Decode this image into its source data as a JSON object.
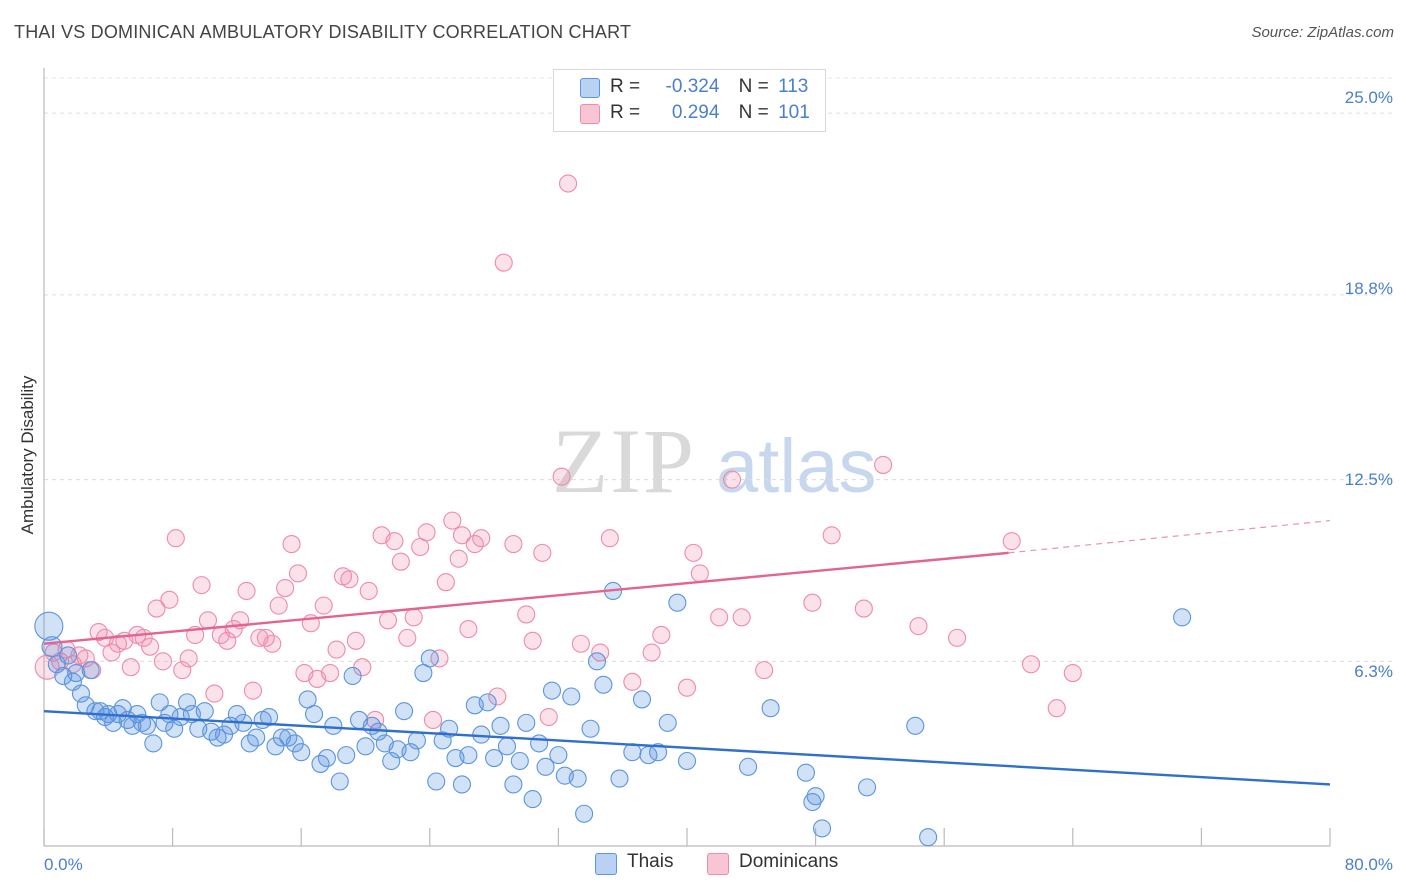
{
  "title": "THAI VS DOMINICAN AMBULATORY DISABILITY CORRELATION CHART",
  "source": "Source: ZipAtlas.com",
  "watermark": {
    "zip": "ZIP",
    "atlas": "atlas"
  },
  "colors": {
    "thais": "#5b95e0",
    "dominicans": "#f08aaa",
    "thais_line": "#2f6fcd",
    "dominicans_line": "#e2648f",
    "tick": "#4a7fd0"
  },
  "legend": {
    "thais": {
      "r_label": "R =",
      "r_value": "-0.324",
      "n_label": "N =",
      "n_value": "113"
    },
    "dominicans": {
      "r_label": "R =",
      "r_value": "0.294",
      "n_label": "N =",
      "n_value": "101"
    }
  },
  "bottom_legend": {
    "thais": "Thais",
    "dominicans": "Dominicans"
  },
  "chart_data": {
    "type": "scatter",
    "title": "THAI VS DOMINICAN AMBULATORY DISABILITY CORRELATION CHART",
    "ylabel": "Ambulatory Disability",
    "xlim": [
      0,
      80
    ],
    "ylim": [
      0,
      26.2
    ],
    "x_tick_labels": [
      "0.0%",
      "80.0%"
    ],
    "y_ticks": [
      6.3,
      12.5,
      18.8,
      25.0
    ],
    "y_tick_labels": [
      "6.3%",
      "12.5%",
      "18.8%",
      "25.0%"
    ],
    "grid": "horizontal dashed",
    "legend_position": "top-center",
    "series": [
      {
        "name": "Thais",
        "r": -0.324,
        "n": 113,
        "trend": {
          "x": [
            0,
            80
          ],
          "y": [
            4.6,
            2.1
          ]
        },
        "points": [
          [
            0.3,
            7.5
          ],
          [
            0.5,
            6.8
          ],
          [
            0.8,
            6.2
          ],
          [
            1.2,
            5.8
          ],
          [
            1.5,
            6.5
          ],
          [
            1.8,
            5.6
          ],
          [
            2.0,
            5.9
          ],
          [
            2.3,
            5.2
          ],
          [
            2.6,
            4.8
          ],
          [
            2.9,
            6.0
          ],
          [
            3.2,
            4.6
          ],
          [
            3.5,
            4.6
          ],
          [
            3.8,
            4.4
          ],
          [
            4.0,
            4.5
          ],
          [
            4.3,
            4.2
          ],
          [
            4.6,
            4.5
          ],
          [
            4.9,
            4.7
          ],
          [
            5.2,
            4.3
          ],
          [
            5.5,
            4.1
          ],
          [
            5.8,
            4.5
          ],
          [
            6.1,
            4.2
          ],
          [
            6.4,
            4.1
          ],
          [
            6.8,
            3.5
          ],
          [
            7.2,
            4.9
          ],
          [
            7.5,
            4.2
          ],
          [
            7.8,
            4.5
          ],
          [
            8.1,
            4.0
          ],
          [
            8.5,
            4.4
          ],
          [
            8.9,
            4.9
          ],
          [
            9.2,
            4.5
          ],
          [
            9.6,
            4.0
          ],
          [
            10.0,
            4.6
          ],
          [
            10.4,
            3.9
          ],
          [
            10.8,
            3.7
          ],
          [
            11.2,
            3.8
          ],
          [
            11.6,
            4.1
          ],
          [
            12.0,
            4.5
          ],
          [
            12.4,
            4.2
          ],
          [
            12.8,
            3.5
          ],
          [
            13.2,
            3.7
          ],
          [
            13.6,
            4.3
          ],
          [
            14.0,
            4.4
          ],
          [
            14.4,
            3.4
          ],
          [
            14.8,
            3.7
          ],
          [
            15.2,
            3.7
          ],
          [
            15.6,
            3.5
          ],
          [
            16.0,
            3.2
          ],
          [
            16.4,
            5.0
          ],
          [
            16.8,
            4.5
          ],
          [
            17.2,
            2.8
          ],
          [
            17.6,
            3.0
          ],
          [
            18.0,
            4.1
          ],
          [
            18.4,
            2.2
          ],
          [
            18.8,
            3.1
          ],
          [
            19.2,
            5.8
          ],
          [
            19.6,
            4.3
          ],
          [
            20.0,
            3.4
          ],
          [
            20.4,
            4.1
          ],
          [
            20.8,
            3.9
          ],
          [
            21.2,
            3.5
          ],
          [
            21.6,
            2.9
          ],
          [
            22.0,
            3.3
          ],
          [
            22.4,
            4.6
          ],
          [
            22.8,
            3.2
          ],
          [
            23.2,
            3.6
          ],
          [
            23.6,
            5.9
          ],
          [
            24.0,
            6.4
          ],
          [
            24.4,
            2.2
          ],
          [
            24.8,
            3.6
          ],
          [
            25.2,
            4.0
          ],
          [
            25.6,
            3.0
          ],
          [
            26.0,
            2.1
          ],
          [
            26.4,
            3.1
          ],
          [
            26.8,
            4.8
          ],
          [
            27.2,
            3.8
          ],
          [
            27.6,
            4.9
          ],
          [
            28.0,
            3.0
          ],
          [
            28.4,
            4.1
          ],
          [
            28.8,
            3.4
          ],
          [
            29.2,
            2.1
          ],
          [
            29.6,
            2.9
          ],
          [
            30.0,
            4.2
          ],
          [
            30.4,
            1.6
          ],
          [
            30.8,
            3.5
          ],
          [
            31.2,
            2.7
          ],
          [
            31.6,
            5.3
          ],
          [
            32.0,
            3.1
          ],
          [
            32.4,
            2.4
          ],
          [
            32.8,
            5.1
          ],
          [
            33.2,
            2.3
          ],
          [
            33.6,
            1.1
          ],
          [
            34.0,
            4.0
          ],
          [
            34.4,
            6.3
          ],
          [
            34.8,
            5.5
          ],
          [
            35.4,
            8.7
          ],
          [
            35.8,
            2.3
          ],
          [
            36.6,
            3.2
          ],
          [
            37.2,
            5.0
          ],
          [
            37.6,
            3.1
          ],
          [
            38.2,
            3.2
          ],
          [
            38.8,
            4.2
          ],
          [
            39.4,
            8.3
          ],
          [
            40.0,
            2.9
          ],
          [
            43.8,
            2.7
          ],
          [
            45.2,
            4.7
          ],
          [
            47.4,
            2.5
          ],
          [
            47.8,
            1.5
          ],
          [
            48.0,
            1.7
          ],
          [
            48.4,
            0.6
          ],
          [
            51.2,
            2.0
          ],
          [
            54.2,
            4.1
          ],
          [
            55.0,
            0.3
          ],
          [
            70.8,
            7.8
          ]
        ]
      },
      {
        "name": "Dominicans",
        "r": 0.294,
        "n": 101,
        "trend": {
          "x": [
            0,
            60
          ],
          "y": [
            6.9,
            10.0
          ]
        },
        "trend_extension": {
          "x": [
            60,
            80
          ],
          "y": [
            10.0,
            11.1
          ]
        },
        "points": [
          [
            0.2,
            6.1
          ],
          [
            0.6,
            6.6
          ],
          [
            1.0,
            6.3
          ],
          [
            1.4,
            6.7
          ],
          [
            1.8,
            6.2
          ],
          [
            2.2,
            6.5
          ],
          [
            2.6,
            6.4
          ],
          [
            3.0,
            6.0
          ],
          [
            3.4,
            7.3
          ],
          [
            3.8,
            7.1
          ],
          [
            4.2,
            6.6
          ],
          [
            4.6,
            6.9
          ],
          [
            5.0,
            7.0
          ],
          [
            5.4,
            6.1
          ],
          [
            5.8,
            7.2
          ],
          [
            6.2,
            7.1
          ],
          [
            6.6,
            6.8
          ],
          [
            7.0,
            8.1
          ],
          [
            7.4,
            6.3
          ],
          [
            7.8,
            8.4
          ],
          [
            8.2,
            10.5
          ],
          [
            8.6,
            6.0
          ],
          [
            9.0,
            6.4
          ],
          [
            9.4,
            7.2
          ],
          [
            9.8,
            8.9
          ],
          [
            10.2,
            7.7
          ],
          [
            10.6,
            5.2
          ],
          [
            11.0,
            7.2
          ],
          [
            11.4,
            7.0
          ],
          [
            11.8,
            7.4
          ],
          [
            12.2,
            7.7
          ],
          [
            12.6,
            8.7
          ],
          [
            13.0,
            5.3
          ],
          [
            13.4,
            7.1
          ],
          [
            13.8,
            7.1
          ],
          [
            14.2,
            6.9
          ],
          [
            14.6,
            8.2
          ],
          [
            15.0,
            8.8
          ],
          [
            15.4,
            10.3
          ],
          [
            15.8,
            9.3
          ],
          [
            16.2,
            5.9
          ],
          [
            16.6,
            7.6
          ],
          [
            17.0,
            5.7
          ],
          [
            17.4,
            8.2
          ],
          [
            17.8,
            5.9
          ],
          [
            18.2,
            6.7
          ],
          [
            18.6,
            9.2
          ],
          [
            19.0,
            9.1
          ],
          [
            19.4,
            7.0
          ],
          [
            19.8,
            6.1
          ],
          [
            20.2,
            8.7
          ],
          [
            20.6,
            4.3
          ],
          [
            21.0,
            10.6
          ],
          [
            21.4,
            7.7
          ],
          [
            21.8,
            10.4
          ],
          [
            22.2,
            9.7
          ],
          [
            22.6,
            7.1
          ],
          [
            23.0,
            7.8
          ],
          [
            23.4,
            10.2
          ],
          [
            23.8,
            10.7
          ],
          [
            24.2,
            4.3
          ],
          [
            24.6,
            6.4
          ],
          [
            25.0,
            9.0
          ],
          [
            25.4,
            11.1
          ],
          [
            25.8,
            9.8
          ],
          [
            26.0,
            10.6
          ],
          [
            26.4,
            7.4
          ],
          [
            26.8,
            10.3
          ],
          [
            27.2,
            10.5
          ],
          [
            28.2,
            5.1
          ],
          [
            28.6,
            19.9
          ],
          [
            29.2,
            10.3
          ],
          [
            30.0,
            7.9
          ],
          [
            30.4,
            7.0
          ],
          [
            31.0,
            10.0
          ],
          [
            31.4,
            4.4
          ],
          [
            32.2,
            12.6
          ],
          [
            32.6,
            22.6
          ],
          [
            33.4,
            6.9
          ],
          [
            34.6,
            6.6
          ],
          [
            35.2,
            10.5
          ],
          [
            36.6,
            5.6
          ],
          [
            37.8,
            6.6
          ],
          [
            38.4,
            7.2
          ],
          [
            40.0,
            5.4
          ],
          [
            40.4,
            10.0
          ],
          [
            40.8,
            9.3
          ],
          [
            42.0,
            7.8
          ],
          [
            42.8,
            12.5
          ],
          [
            43.4,
            7.8
          ],
          [
            44.8,
            6.0
          ],
          [
            47.8,
            8.3
          ],
          [
            49.0,
            10.6
          ],
          [
            51.0,
            8.1
          ],
          [
            52.2,
            13.0
          ],
          [
            54.4,
            7.5
          ],
          [
            56.8,
            7.1
          ],
          [
            60.2,
            10.4
          ],
          [
            61.4,
            6.2
          ],
          [
            63.0,
            4.7
          ],
          [
            64.0,
            5.9
          ]
        ]
      }
    ]
  }
}
